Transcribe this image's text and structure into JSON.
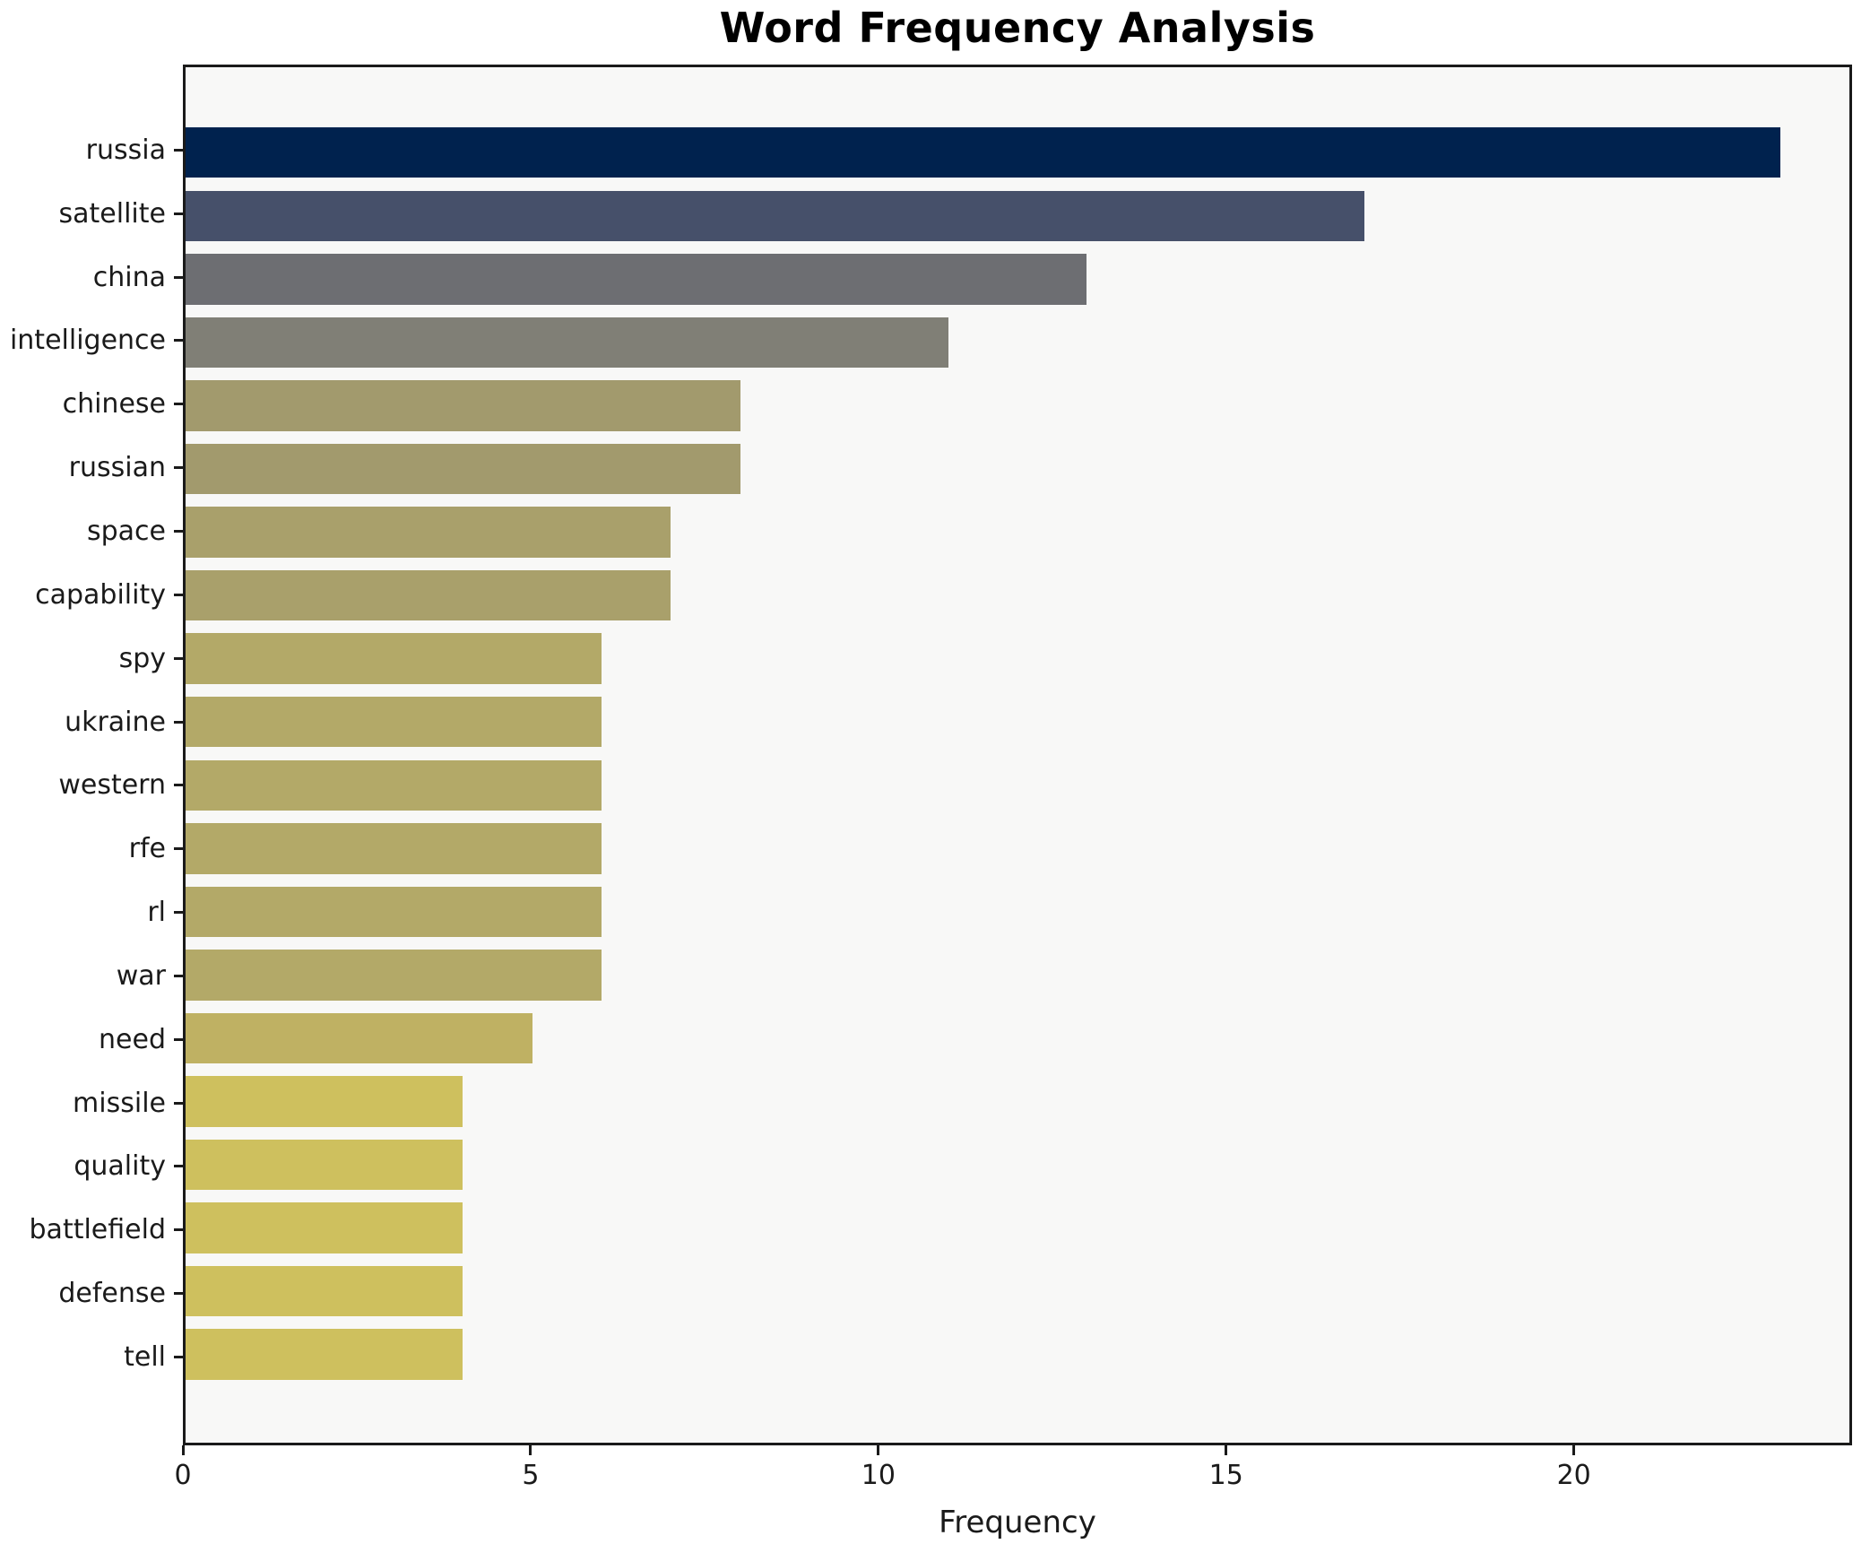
{
  "chart_data": {
    "type": "bar",
    "orientation": "horizontal",
    "title": "Word Frequency Analysis",
    "xlabel": "Frequency",
    "ylabel": "",
    "categories": [
      "russia",
      "satellite",
      "china",
      "intelligence",
      "chinese",
      "russian",
      "space",
      "capability",
      "spy",
      "ukraine",
      "western",
      "rfe",
      "rl",
      "war",
      "need",
      "missile",
      "quality",
      "battlefield",
      "defense",
      "tell"
    ],
    "values": [
      23,
      17,
      13,
      11,
      8,
      8,
      7,
      7,
      6,
      6,
      6,
      6,
      6,
      6,
      5,
      4,
      4,
      4,
      4,
      4
    ],
    "bar_colors": [
      "#00224e",
      "#46506a",
      "#6d6e72",
      "#807f76",
      "#a29a6d",
      "#a29a6d",
      "#a9a06b",
      "#a9a06b",
      "#b3a968",
      "#b3a968",
      "#b3a968",
      "#b3a968",
      "#b3a968",
      "#b3a968",
      "#bfb163",
      "#cec05e",
      "#cec05e",
      "#cec05e",
      "#cec05e",
      "#cec05e"
    ],
    "xlim": [
      0,
      24
    ],
    "xticks": [
      0,
      5,
      10,
      15,
      20
    ],
    "grid": false,
    "legend": false,
    "plot_bg": "#f8f8f7",
    "figure_bg": "#ffffff",
    "spine_color": "#1a1a1a",
    "bar_height_frac": 0.8
  }
}
